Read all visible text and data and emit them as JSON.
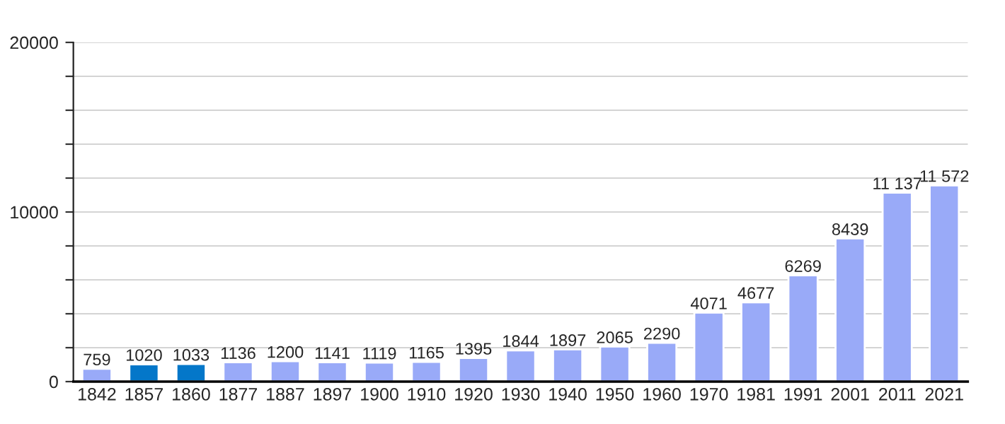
{
  "chart_data": {
    "type": "bar",
    "categories": [
      "1842",
      "1857",
      "1860",
      "1877",
      "1887",
      "1897",
      "1900",
      "1910",
      "1920",
      "1930",
      "1940",
      "1950",
      "1960",
      "1970",
      "1981",
      "1991",
      "2001",
      "2011",
      "2021"
    ],
    "values": [
      759,
      1020,
      1033,
      1136,
      1200,
      1141,
      1119,
      1165,
      1395,
      1844,
      1897,
      2065,
      2290,
      4071,
      4677,
      6269,
      8439,
      11137,
      11572
    ],
    "value_labels": [
      "759",
      "1020",
      "1033",
      "1136",
      "1200",
      "1141",
      "1119",
      "1165",
      "1395",
      "1844",
      "1897",
      "2065",
      "2290",
      "4071",
      "4677",
      "6269",
      "8439",
      "11 137",
      "11 572"
    ],
    "colors": [
      "#99aaf8",
      "#0477c9",
      "#0477c9",
      "#99aaf8",
      "#99aaf8",
      "#99aaf8",
      "#99aaf8",
      "#99aaf8",
      "#99aaf8",
      "#99aaf8",
      "#99aaf8",
      "#99aaf8",
      "#99aaf8",
      "#99aaf8",
      "#99aaf8",
      "#99aaf8",
      "#99aaf8",
      "#99aaf8",
      "#99aaf8"
    ],
    "ylim": [
      0,
      20000
    ],
    "yticks": [
      0,
      {
        "value": 2000,
        "label": null
      },
      {
        "value": 4000,
        "label": null
      },
      {
        "value": 6000,
        "label": null
      },
      {
        "value": 8000,
        "label": null
      },
      10000,
      {
        "value": 12000,
        "label": null
      },
      {
        "value": 14000,
        "label": null
      },
      {
        "value": 16000,
        "label": null
      },
      {
        "value": 18000,
        "label": null
      },
      20000
    ],
    "grid": "y"
  }
}
